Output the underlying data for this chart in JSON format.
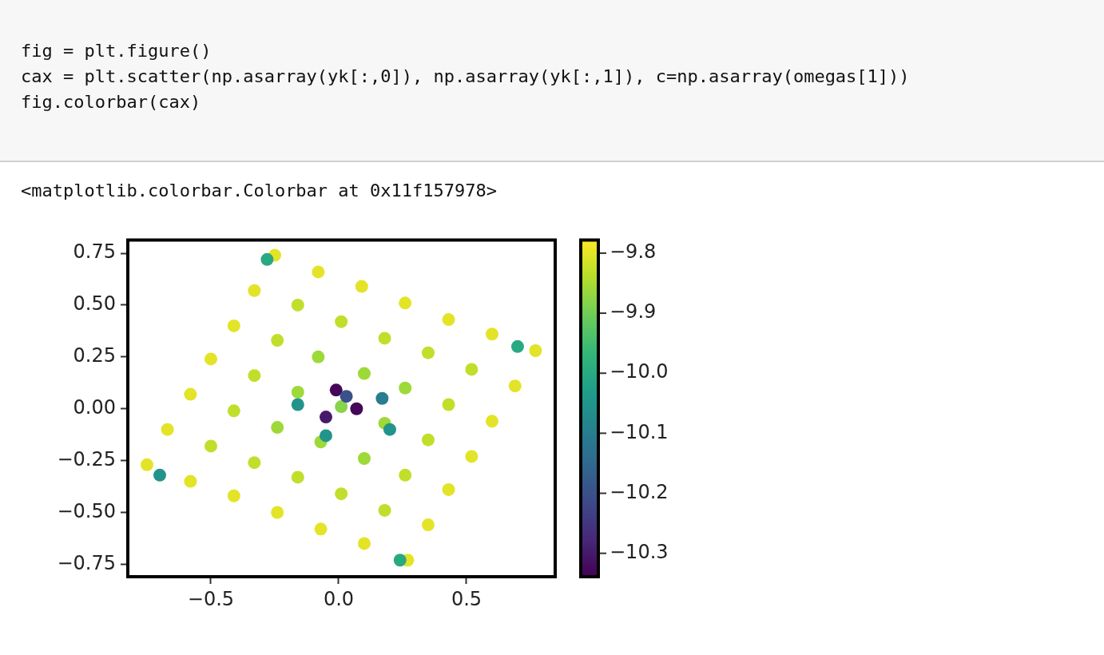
{
  "chart_data": {
    "type": "scatter",
    "annotations": [
      "fig = plt.figure()",
      "cax = plt.scatter(np.asarray(yk[:,0]), np.asarray(yk[:,1]), c=np.asarray(omegas[1]))",
      "fig.colorbar(cax)",
      "<matplotlib.colorbar.Colorbar at 0x11f157978>"
    ],
    "x": [
      -0.75,
      -0.58,
      -0.41,
      -0.24,
      -0.07,
      0.1,
      0.27,
      -0.67,
      -0.5,
      -0.33,
      -0.16,
      0.01,
      0.18,
      0.35,
      -0.58,
      -0.41,
      -0.24,
      -0.07,
      0.1,
      0.26,
      0.43,
      -0.5,
      -0.33,
      -0.16,
      0.01,
      0.18,
      0.35,
      0.52,
      -0.41,
      -0.24,
      -0.08,
      0.1,
      0.26,
      0.43,
      0.6,
      -0.33,
      -0.16,
      0.01,
      0.18,
      0.35,
      0.52,
      0.69,
      -0.25,
      -0.08,
      0.09,
      0.26,
      0.43,
      0.6,
      0.77,
      -0.01,
      0.03,
      0.07,
      -0.05,
      0.17,
      -0.16,
      0.2,
      -0.05,
      0.7,
      -0.28,
      0.24,
      -0.7
    ],
    "values": [
      -0.27,
      -0.35,
      -0.42,
      -0.5,
      -0.58,
      -0.65,
      -0.73,
      -0.1,
      -0.18,
      -0.26,
      -0.33,
      -0.41,
      -0.49,
      -0.56,
      0.07,
      -0.01,
      -0.09,
      -0.16,
      -0.24,
      -0.32,
      -0.39,
      0.24,
      0.16,
      0.08,
      0.01,
      -0.07,
      -0.15,
      -0.23,
      0.4,
      0.33,
      0.25,
      0.17,
      0.1,
      0.02,
      -0.06,
      0.57,
      0.5,
      0.42,
      0.34,
      0.27,
      0.19,
      0.11,
      0.74,
      0.66,
      0.59,
      0.51,
      0.43,
      0.36,
      0.28,
      0.09,
      0.06,
      0.0,
      -0.04,
      0.05,
      0.02,
      -0.1,
      -0.13,
      0.3,
      0.72,
      -0.73,
      -0.32
    ],
    "cvalues": [
      -9.8,
      -9.8,
      -9.8,
      -9.8,
      -9.8,
      -9.8,
      -9.8,
      -9.8,
      -9.83,
      -9.83,
      -9.83,
      -9.83,
      -9.83,
      -9.8,
      -9.8,
      -9.83,
      -9.86,
      -9.86,
      -9.86,
      -9.83,
      -9.8,
      -9.8,
      -9.83,
      -9.86,
      -9.88,
      -9.86,
      -9.83,
      -9.8,
      -9.8,
      -9.83,
      -9.86,
      -9.86,
      -9.86,
      -9.83,
      -9.8,
      -9.8,
      -9.83,
      -9.83,
      -9.83,
      -9.83,
      -9.83,
      -9.8,
      -9.8,
      -9.8,
      -9.8,
      -9.8,
      -9.8,
      -9.8,
      -9.8,
      -10.33,
      -10.2,
      -10.33,
      -10.3,
      -10.1,
      -10.05,
      -10.05,
      -10.05,
      -10.0,
      -10.0,
      -10.0,
      -10.05
    ],
    "marker": "circle",
    "xlim": [
      -0.825,
      0.847
    ],
    "ylim": [
      -0.81,
      0.814
    ],
    "xticks": [
      -0.5,
      {
        "value": 0,
        "label": "0.0"
      },
      0.5
    ],
    "yticks": [
      {
        "value": -0.75,
        "label": "−0.75"
      },
      {
        "value": -0.5,
        "label": "−0.50"
      },
      {
        "value": -0.25,
        "label": "−0.25"
      },
      {
        "value": 0,
        "label": "0.00"
      },
      {
        "value": 0.25,
        "label": "0.25"
      },
      {
        "value": 0.5,
        "label": "0.50"
      },
      {
        "value": 0.75,
        "label": "0.75"
      }
    ],
    "clim": [
      -10.339,
      -9.778
    ],
    "cticks": [
      {
        "value": -10.3,
        "label": "−10.3"
      },
      {
        "value": -10.2,
        "label": "−10.2"
      },
      {
        "value": -10.1,
        "label": "−10.1"
      },
      {
        "value": -10,
        "label": "−10.0"
      },
      {
        "value": -9.9,
        "label": "−9.9"
      },
      {
        "value": -9.8,
        "label": "−9.8"
      }
    ]
  }
}
